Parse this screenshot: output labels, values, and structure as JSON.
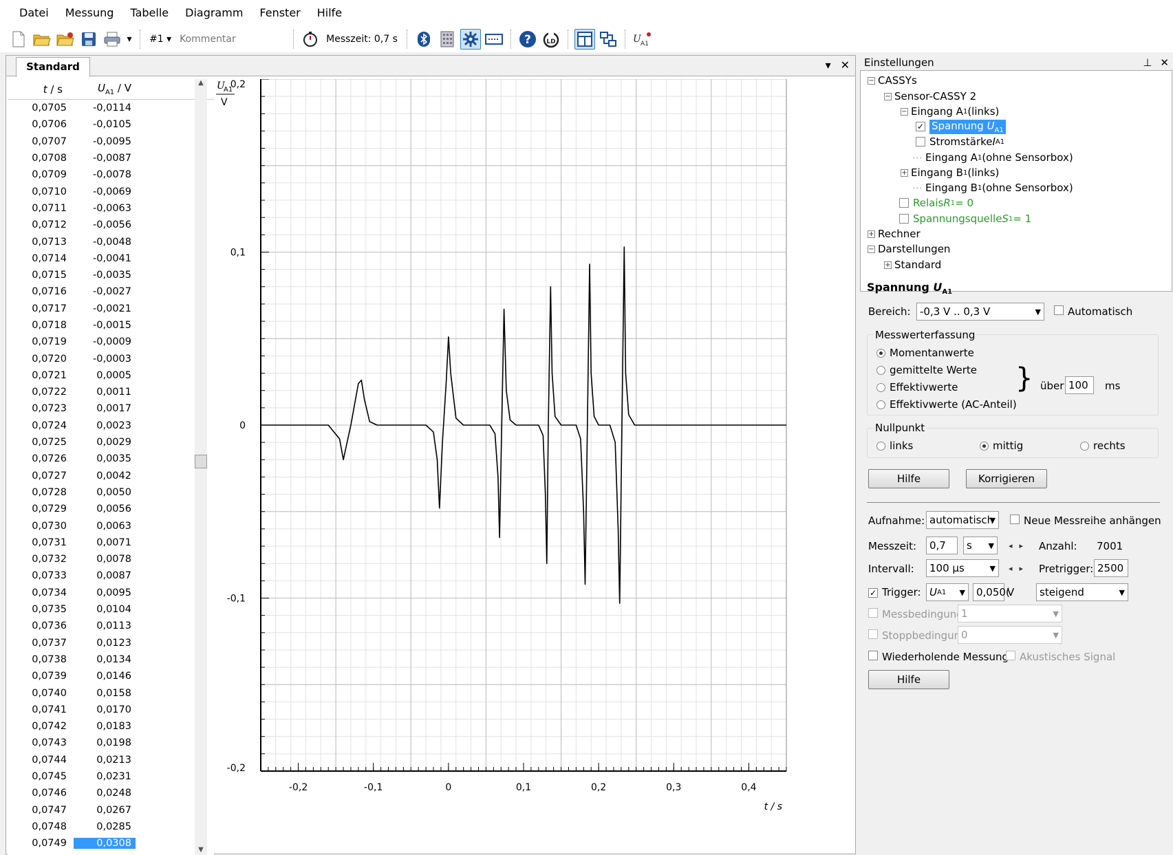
{
  "menu": [
    "Datei",
    "Messung",
    "Tabelle",
    "Diagramm",
    "Fenster",
    "Hilfe"
  ],
  "toolbar": {
    "series_label": "#1",
    "comment_placeholder": "Kommentar",
    "measure_time": "Messzeit: 0,7 s"
  },
  "document": {
    "tab": "Standard"
  },
  "table": {
    "headers": [
      "t / s",
      "U_A1 / V"
    ],
    "header_t": "t",
    "header_t_unit": " / s",
    "header_u": "U",
    "header_u_sub": "A1",
    "header_u_unit": " / V",
    "rows": [
      [
        "0,0705",
        "-0,0114"
      ],
      [
        "0,0706",
        "-0,0105"
      ],
      [
        "0,0707",
        "-0,0095"
      ],
      [
        "0,0708",
        "-0,0087"
      ],
      [
        "0,0709",
        "-0,0078"
      ],
      [
        "0,0710",
        "-0,0069"
      ],
      [
        "0,0711",
        "-0,0063"
      ],
      [
        "0,0712",
        "-0,0056"
      ],
      [
        "0,0713",
        "-0,0048"
      ],
      [
        "0,0714",
        "-0,0041"
      ],
      [
        "0,0715",
        "-0,0035"
      ],
      [
        "0,0716",
        "-0,0027"
      ],
      [
        "0,0717",
        "-0,0021"
      ],
      [
        "0,0718",
        "-0,0015"
      ],
      [
        "0,0719",
        "-0,0009"
      ],
      [
        "0,0720",
        "-0,0003"
      ],
      [
        "0,0721",
        "0,0005"
      ],
      [
        "0,0722",
        "0,0011"
      ],
      [
        "0,0723",
        "0,0017"
      ],
      [
        "0,0724",
        "0,0023"
      ],
      [
        "0,0725",
        "0,0029"
      ],
      [
        "0,0726",
        "0,0035"
      ],
      [
        "0,0727",
        "0,0042"
      ],
      [
        "0,0728",
        "0,0050"
      ],
      [
        "0,0729",
        "0,0056"
      ],
      [
        "0,0730",
        "0,0063"
      ],
      [
        "0,0731",
        "0,0071"
      ],
      [
        "0,0732",
        "0,0078"
      ],
      [
        "0,0733",
        "0,0087"
      ],
      [
        "0,0734",
        "0,0095"
      ],
      [
        "0,0735",
        "0,0104"
      ],
      [
        "0,0736",
        "0,0113"
      ],
      [
        "0,0737",
        "0,0123"
      ],
      [
        "0,0738",
        "0,0134"
      ],
      [
        "0,0739",
        "0,0146"
      ],
      [
        "0,0740",
        "0,0158"
      ],
      [
        "0,0741",
        "0,0170"
      ],
      [
        "0,0742",
        "0,0183"
      ],
      [
        "0,0743",
        "0,0198"
      ],
      [
        "0,0744",
        "0,0213"
      ],
      [
        "0,0745",
        "0,0231"
      ],
      [
        "0,0746",
        "0,0248"
      ],
      [
        "0,0747",
        "0,0267"
      ],
      [
        "0,0748",
        "0,0285"
      ],
      [
        "0,0749",
        "0,0308"
      ]
    ],
    "selected_row": 44
  },
  "chart_data": {
    "type": "line",
    "ylabel_var": "U",
    "ylabel_sub": "A1",
    "ylabel_unit": "V",
    "xlabel": "t / s",
    "xlim": [
      -0.25,
      0.45
    ],
    "ylim": [
      -0.2,
      0.2
    ],
    "xticks": [
      -0.2,
      -0.1,
      0,
      0.1,
      0.2,
      0.3,
      0.4
    ],
    "xtick_labels": [
      "-0,2",
      "-0,1",
      "0",
      "0,1",
      "0,2",
      "0,3",
      "0,4"
    ],
    "yticks": [
      0.2,
      0.1,
      0,
      -0.1,
      -0.2
    ],
    "ytick_labels": [
      "0,2",
      "0,1",
      "0",
      "-0,1",
      "-0,2"
    ],
    "grid": true,
    "line_color": "#000000",
    "x": [
      -0.25,
      -0.16,
      -0.145,
      -0.14,
      -0.135,
      -0.13,
      -0.125,
      -0.12,
      -0.116,
      -0.112,
      -0.105,
      -0.095,
      -0.03,
      -0.02,
      -0.015,
      -0.012,
      -0.008,
      -0.003,
      0.0,
      0.003,
      0.01,
      0.02,
      0.055,
      0.062,
      0.066,
      0.068,
      0.071,
      0.074,
      0.077,
      0.082,
      0.09,
      0.12,
      0.126,
      0.129,
      0.131,
      0.133,
      0.136,
      0.138,
      0.142,
      0.15,
      0.17,
      0.176,
      0.18,
      0.182,
      0.185,
      0.188,
      0.19,
      0.194,
      0.2,
      0.215,
      0.222,
      0.226,
      0.228,
      0.231,
      0.234,
      0.236,
      0.24,
      0.248,
      0.45
    ],
    "y": [
      0,
      0,
      -0.008,
      -0.02,
      -0.01,
      0.0,
      0.012,
      0.024,
      0.026,
      0.015,
      0.002,
      0,
      0,
      -0.004,
      -0.02,
      -0.048,
      -0.01,
      0.025,
      0.051,
      0.03,
      0.004,
      0,
      0,
      -0.005,
      -0.03,
      -0.065,
      0.0,
      0.067,
      0.02,
      0.003,
      0,
      0,
      -0.006,
      -0.04,
      -0.08,
      0.0,
      0.08,
      0.03,
      0.005,
      0,
      0,
      -0.008,
      -0.05,
      -0.092,
      0.0,
      0.093,
      0.03,
      0.005,
      0,
      0,
      -0.01,
      -0.06,
      -0.103,
      0.0,
      0.103,
      0.03,
      0.006,
      0,
      0
    ]
  },
  "panel": {
    "title": "Einstellungen",
    "tree": {
      "cassys": "CASSYs",
      "sensor": "Sensor-CASSY 2",
      "eingang_a1": "Eingang A",
      "eingang_a1_rest": " (links)",
      "spannung": "Spannung ",
      "stromstaerke": "Stromstärke ",
      "eingang_a1_ohne": " (ohne Sensorbox)",
      "eingang_b1": "Eingang B",
      "eingang_b1_rest": " (links)",
      "eingang_b1_ohne": " (ohne Sensorbox)",
      "relais": "Relais ",
      "relais_rest": " = 0",
      "spannungsquelle": "Spannungsquelle ",
      "spannungsquelle_rest": " = 1",
      "rechner": "Rechner",
      "darstellungen": "Darstellungen",
      "standard": "Standard",
      "sub1": "1",
      "subA1": "A1",
      "var_U": "U",
      "var_I": "I",
      "var_R": "R",
      "var_S": "S"
    },
    "section_title": "Spannung ",
    "section_var": "U",
    "section_sub": "A1",
    "bereich_label": "Bereich:",
    "bereich_value": "-0,3 V .. 0,3 V",
    "automatisch_label": "Automatisch",
    "messwert_group": "Messwerterfassung",
    "radio_momentan": "Momentanwerte",
    "radio_gemittelt": "gemittelte Werte",
    "radio_effektiv": "Effektivwerte",
    "radio_effektiv_ac": "Effektivwerte (AC-Anteil)",
    "brace": "}",
    "ueber_label": "über",
    "ueber_value": "100",
    "ueber_unit": "ms",
    "nullpunkt_group": "Nullpunkt",
    "np_links": "links",
    "np_mittig": "mittig",
    "np_rechts": "rechts",
    "hilfe": "Hilfe",
    "korrigieren": "Korrigieren",
    "aufnahme_label": "Aufnahme:",
    "aufnahme_value": "automatisch",
    "neue_messreihe": "Neue Messreihe anhängen",
    "messzeit_label": "Messzeit:",
    "messzeit_value": "0,7",
    "messzeit_unit": "s",
    "anzahl_label": "Anzahl:",
    "anzahl_value": "7001",
    "intervall_label": "Intervall:",
    "intervall_value": "100 µs",
    "pretrigger_label": "Pretrigger:",
    "pretrigger_value": "2500",
    "trigger_label": "Trigger:",
    "trigger_source": "U",
    "trigger_source_sub": "A1",
    "trigger_value": "0,050(",
    "trigger_unit": "V",
    "trigger_edge": "steigend",
    "messbedingung_label": "Messbedingung:",
    "messbedingung_value": "1",
    "stoppbedingung_label": "Stoppbedingung:",
    "stoppbedingung_value": "0",
    "wiederholende": "Wiederholende Messung",
    "akustisch": "Akustisches Signal",
    "hilfe2": "Hilfe"
  }
}
